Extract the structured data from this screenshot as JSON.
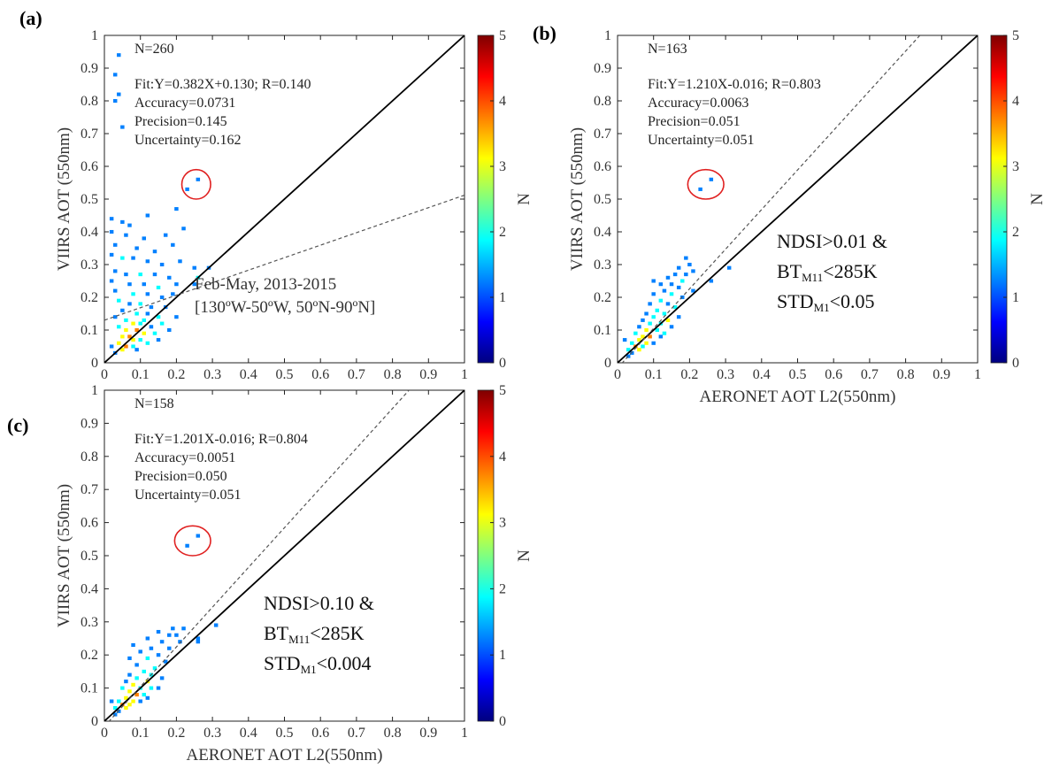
{
  "colorbar": {
    "label": "N",
    "ticks": [
      "0",
      "1",
      "2",
      "3",
      "4",
      "5"
    ],
    "range": [
      0,
      5
    ],
    "colormap": [
      "#00007f",
      "#0000ff",
      "#0080ff",
      "#00ffff",
      "#80ff80",
      "#ffff00",
      "#ff8000",
      "#ff0000",
      "#7f0000"
    ]
  },
  "colors": {
    "points_low": "#1f3cff",
    "identity_line": "#000000",
    "fit_line": "#555555",
    "highlight_circle": "#e02020"
  },
  "chart_data": [
    {
      "type": "scatter",
      "panel_label": "(a)",
      "xlabel": "AERONET AOT L2(550nm)",
      "ylabel": "VIIRS AOT (550nm)",
      "xlim": [
        0,
        1
      ],
      "ylim": [
        0,
        1
      ],
      "xticks": [
        "0",
        "0.1",
        "0.2",
        "0.3",
        "0.4",
        "0.5",
        "0.6",
        "0.7",
        "0.8",
        "0.9",
        "1"
      ],
      "yticks": [
        "0",
        "0.1",
        "0.2",
        "0.3",
        "0.4",
        "0.5",
        "0.6",
        "0.7",
        "0.8",
        "0.9",
        "1"
      ],
      "stats": {
        "n": "N=260",
        "fit": "Fit:Y=0.382X+0.130; R=0.140",
        "accuracy": "Accuracy=0.0731",
        "precision": "Precision=0.145",
        "uncertainty": "Uncertainty=0.162"
      },
      "fit_line": {
        "slope": 0.382,
        "intercept": 0.13
      },
      "note": [
        "Feb-May, 2013-2015",
        "[130ºW-50ºW, 50ºN-90ºN]"
      ],
      "criteria": [],
      "highlight": {
        "cx": 0.255,
        "cy": 0.545,
        "rx": 0.04,
        "ry": 0.045
      },
      "points": [
        [
          0.04,
          0.94,
          1
        ],
        [
          0.03,
          0.88,
          1
        ],
        [
          0.04,
          0.82,
          1
        ],
        [
          0.03,
          0.8,
          1
        ],
        [
          0.05,
          0.72,
          1
        ],
        [
          0.23,
          0.53,
          1
        ],
        [
          0.26,
          0.56,
          1
        ],
        [
          0.02,
          0.44,
          1
        ],
        [
          0.05,
          0.43,
          1
        ],
        [
          0.07,
          0.42,
          1
        ],
        [
          0.12,
          0.45,
          1
        ],
        [
          0.2,
          0.47,
          1
        ],
        [
          0.02,
          0.4,
          1
        ],
        [
          0.06,
          0.39,
          1
        ],
        [
          0.11,
          0.38,
          1
        ],
        [
          0.17,
          0.39,
          1
        ],
        [
          0.22,
          0.41,
          1
        ],
        [
          0.03,
          0.36,
          1
        ],
        [
          0.09,
          0.35,
          1
        ],
        [
          0.14,
          0.34,
          1
        ],
        [
          0.19,
          0.36,
          1
        ],
        [
          0.02,
          0.33,
          1
        ],
        [
          0.05,
          0.32,
          2
        ],
        [
          0.08,
          0.32,
          1
        ],
        [
          0.12,
          0.31,
          1
        ],
        [
          0.16,
          0.3,
          1
        ],
        [
          0.21,
          0.31,
          1
        ],
        [
          0.25,
          0.29,
          1
        ],
        [
          0.29,
          0.29,
          1
        ],
        [
          0.03,
          0.28,
          1
        ],
        [
          0.06,
          0.27,
          1
        ],
        [
          0.1,
          0.27,
          2
        ],
        [
          0.14,
          0.27,
          1
        ],
        [
          0.18,
          0.26,
          1
        ],
        [
          0.26,
          0.26,
          2
        ],
        [
          0.02,
          0.25,
          1
        ],
        [
          0.07,
          0.24,
          1
        ],
        [
          0.11,
          0.24,
          1
        ],
        [
          0.15,
          0.23,
          2
        ],
        [
          0.2,
          0.24,
          1
        ],
        [
          0.25,
          0.24,
          1
        ],
        [
          0.03,
          0.22,
          1
        ],
        [
          0.08,
          0.21,
          2
        ],
        [
          0.12,
          0.21,
          1
        ],
        [
          0.16,
          0.2,
          1
        ],
        [
          0.19,
          0.21,
          1
        ],
        [
          0.04,
          0.19,
          2
        ],
        [
          0.07,
          0.18,
          1
        ],
        [
          0.1,
          0.18,
          2
        ],
        [
          0.13,
          0.17,
          1
        ],
        [
          0.17,
          0.17,
          1
        ],
        [
          0.05,
          0.16,
          1
        ],
        [
          0.09,
          0.15,
          2
        ],
        [
          0.12,
          0.15,
          1
        ],
        [
          0.15,
          0.14,
          2
        ],
        [
          0.03,
          0.14,
          1
        ],
        [
          0.06,
          0.13,
          2
        ],
        [
          0.08,
          0.12,
          3
        ],
        [
          0.1,
          0.12,
          2
        ],
        [
          0.13,
          0.11,
          1
        ],
        [
          0.04,
          0.11,
          2
        ],
        [
          0.06,
          0.1,
          3
        ],
        [
          0.09,
          0.1,
          4
        ],
        [
          0.11,
          0.09,
          3
        ],
        [
          0.14,
          0.09,
          2
        ],
        [
          0.05,
          0.08,
          3
        ],
        [
          0.07,
          0.08,
          4
        ],
        [
          0.08,
          0.07,
          3
        ],
        [
          0.1,
          0.07,
          2
        ],
        [
          0.12,
          0.06,
          2
        ],
        [
          0.04,
          0.06,
          3
        ],
        [
          0.06,
          0.05,
          4
        ],
        [
          0.05,
          0.04,
          3
        ],
        [
          0.08,
          0.05,
          2
        ],
        [
          0.03,
          0.03,
          1
        ],
        [
          0.09,
          0.04,
          1
        ],
        [
          0.15,
          0.07,
          1
        ],
        [
          0.18,
          0.1,
          1
        ],
        [
          0.2,
          0.14,
          1
        ],
        [
          0.02,
          0.05,
          1
        ],
        [
          0.16,
          0.12,
          2
        ],
        [
          0.11,
          0.13,
          2
        ]
      ]
    },
    {
      "type": "scatter",
      "panel_label": "(b)",
      "xlabel": "AERONET AOT L2(550nm)",
      "ylabel": "VIIRS AOT (550nm)",
      "xlim": [
        0,
        1
      ],
      "ylim": [
        0,
        1
      ],
      "xticks": [
        "0",
        "0.1",
        "0.2",
        "0.3",
        "0.4",
        "0.5",
        "0.6",
        "0.7",
        "0.8",
        "0.9",
        "1"
      ],
      "yticks": [
        "0",
        "0.1",
        "0.2",
        "0.3",
        "0.4",
        "0.5",
        "0.6",
        "0.7",
        "0.8",
        "0.9",
        "1"
      ],
      "stats": {
        "n": "N=163",
        "fit": "Fit:Y=1.210X-0.016; R=0.803",
        "accuracy": "Accuracy=0.0063",
        "precision": "Precision=0.051",
        "uncertainty": "Uncertainty=0.051"
      },
      "fit_line": {
        "slope": 1.21,
        "intercept": -0.016
      },
      "note": [],
      "criteria": [
        {
          "main": "NDSI>0.01 &",
          "sub": ""
        },
        {
          "main": "BT",
          "sub": "M11",
          "tail": "<285K"
        },
        {
          "main": "STD",
          "sub": "M1",
          "tail": "<0.05"
        }
      ],
      "highlight": {
        "cx": 0.245,
        "cy": 0.545,
        "rx": 0.05,
        "ry": 0.045
      },
      "points": [
        [
          0.23,
          0.53,
          1
        ],
        [
          0.26,
          0.56,
          1
        ],
        [
          0.19,
          0.32,
          1
        ],
        [
          0.2,
          0.3,
          1
        ],
        [
          0.17,
          0.29,
          1
        ],
        [
          0.31,
          0.29,
          1
        ],
        [
          0.21,
          0.28,
          1
        ],
        [
          0.16,
          0.27,
          1
        ],
        [
          0.19,
          0.27,
          1
        ],
        [
          0.14,
          0.26,
          1
        ],
        [
          0.18,
          0.25,
          2
        ],
        [
          0.1,
          0.25,
          1
        ],
        [
          0.26,
          0.25,
          1
        ],
        [
          0.15,
          0.24,
          1
        ],
        [
          0.12,
          0.24,
          1
        ],
        [
          0.17,
          0.23,
          1
        ],
        [
          0.21,
          0.22,
          1
        ],
        [
          0.13,
          0.22,
          1
        ],
        [
          0.1,
          0.21,
          1
        ],
        [
          0.15,
          0.21,
          2
        ],
        [
          0.18,
          0.2,
          1
        ],
        [
          0.12,
          0.19,
          2
        ],
        [
          0.09,
          0.18,
          1
        ],
        [
          0.14,
          0.18,
          1
        ],
        [
          0.16,
          0.17,
          2
        ],
        [
          0.11,
          0.16,
          2
        ],
        [
          0.08,
          0.15,
          1
        ],
        [
          0.13,
          0.15,
          2
        ],
        [
          0.1,
          0.14,
          2
        ],
        [
          0.14,
          0.13,
          3
        ],
        [
          0.07,
          0.13,
          1
        ],
        [
          0.09,
          0.12,
          2
        ],
        [
          0.12,
          0.12,
          2
        ],
        [
          0.06,
          0.11,
          1
        ],
        [
          0.08,
          0.1,
          3
        ],
        [
          0.11,
          0.1,
          2
        ],
        [
          0.13,
          0.09,
          2
        ],
        [
          0.05,
          0.09,
          2
        ],
        [
          0.07,
          0.08,
          3
        ],
        [
          0.09,
          0.08,
          4
        ],
        [
          0.06,
          0.07,
          3
        ],
        [
          0.08,
          0.06,
          3
        ],
        [
          0.04,
          0.06,
          2
        ],
        [
          0.05,
          0.05,
          4
        ],
        [
          0.07,
          0.05,
          2
        ],
        [
          0.03,
          0.04,
          2
        ],
        [
          0.04,
          0.03,
          1
        ],
        [
          0.06,
          0.04,
          3
        ],
        [
          0.02,
          0.07,
          1
        ],
        [
          0.03,
          0.02,
          1
        ],
        [
          0.1,
          0.06,
          1
        ],
        [
          0.12,
          0.08,
          1
        ],
        [
          0.15,
          0.11,
          1
        ],
        [
          0.17,
          0.14,
          1
        ]
      ]
    },
    {
      "type": "scatter",
      "panel_label": "(c)",
      "xlabel": "AERONET AOT L2(550nm)",
      "ylabel": "VIIRS AOT (550nm)",
      "xlim": [
        0,
        1
      ],
      "ylim": [
        0,
        1
      ],
      "xticks": [
        "0",
        "0.1",
        "0.2",
        "0.3",
        "0.4",
        "0.5",
        "0.6",
        "0.7",
        "0.8",
        "0.9",
        "1"
      ],
      "yticks": [
        "0",
        "0.1",
        "0.2",
        "0.3",
        "0.4",
        "0.5",
        "0.6",
        "0.7",
        "0.8",
        "0.9",
        "1"
      ],
      "stats": {
        "n": "N=158",
        "fit": "Fit:Y=1.201X-0.016; R=0.804",
        "accuracy": "Accuracy=0.0051",
        "precision": "Precision=0.050",
        "uncertainty": "Uncertainty=0.051"
      },
      "fit_line": {
        "slope": 1.201,
        "intercept": -0.016
      },
      "note": [],
      "criteria": [
        {
          "main": "NDSI>0.10 &",
          "sub": ""
        },
        {
          "main": "BT",
          "sub": "M11",
          "tail": "<285K"
        },
        {
          "main": "STD",
          "sub": "M1",
          "tail": "<0.004"
        }
      ],
      "highlight": {
        "cx": 0.245,
        "cy": 0.545,
        "rx": 0.05,
        "ry": 0.045
      },
      "points": [
        [
          0.23,
          0.53,
          1
        ],
        [
          0.26,
          0.56,
          1
        ],
        [
          0.31,
          0.29,
          1
        ],
        [
          0.19,
          0.28,
          1
        ],
        [
          0.22,
          0.28,
          1
        ],
        [
          0.15,
          0.27,
          1
        ],
        [
          0.18,
          0.26,
          1
        ],
        [
          0.2,
          0.26,
          1
        ],
        [
          0.12,
          0.25,
          1
        ],
        [
          0.26,
          0.25,
          1
        ],
        [
          0.16,
          0.24,
          1
        ],
        [
          0.21,
          0.24,
          1
        ],
        [
          0.08,
          0.23,
          1
        ],
        [
          0.13,
          0.22,
          1
        ],
        [
          0.18,
          0.22,
          1
        ],
        [
          0.1,
          0.21,
          1
        ],
        [
          0.15,
          0.2,
          1
        ],
        [
          0.07,
          0.19,
          1
        ],
        [
          0.12,
          0.19,
          2
        ],
        [
          0.17,
          0.18,
          1
        ],
        [
          0.09,
          0.17,
          1
        ],
        [
          0.14,
          0.16,
          2
        ],
        [
          0.11,
          0.15,
          2
        ],
        [
          0.07,
          0.14,
          1
        ],
        [
          0.13,
          0.14,
          2
        ],
        [
          0.09,
          0.13,
          2
        ],
        [
          0.12,
          0.12,
          3
        ],
        [
          0.06,
          0.12,
          1
        ],
        [
          0.08,
          0.11,
          3
        ],
        [
          0.1,
          0.1,
          2
        ],
        [
          0.13,
          0.1,
          2
        ],
        [
          0.05,
          0.1,
          2
        ],
        [
          0.07,
          0.09,
          3
        ],
        [
          0.09,
          0.08,
          4
        ],
        [
          0.11,
          0.08,
          2
        ],
        [
          0.06,
          0.07,
          3
        ],
        [
          0.08,
          0.06,
          3
        ],
        [
          0.04,
          0.06,
          2
        ],
        [
          0.05,
          0.05,
          4
        ],
        [
          0.07,
          0.05,
          3
        ],
        [
          0.03,
          0.04,
          2
        ],
        [
          0.04,
          0.03,
          1
        ],
        [
          0.06,
          0.04,
          3
        ],
        [
          0.02,
          0.06,
          1
        ],
        [
          0.03,
          0.02,
          1
        ],
        [
          0.1,
          0.06,
          1
        ],
        [
          0.12,
          0.07,
          1
        ],
        [
          0.15,
          0.1,
          1
        ],
        [
          0.16,
          0.13,
          1
        ],
        [
          0.26,
          0.24,
          1
        ]
      ]
    }
  ]
}
